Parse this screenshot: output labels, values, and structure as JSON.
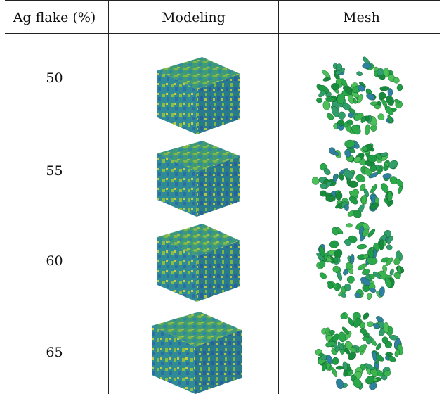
{
  "table": {
    "headers": {
      "col1": "Ag flake (%)",
      "col2": "Modeling",
      "col3": "Mesh"
    },
    "rows": [
      {
        "value": "50",
        "modeling_icon": "composite-cube-icon",
        "mesh_icon": "flake-mesh-icon"
      },
      {
        "value": "55",
        "modeling_icon": "composite-cube-icon",
        "mesh_icon": "flake-mesh-icon"
      },
      {
        "value": "60",
        "modeling_icon": "composite-cube-icon",
        "mesh_icon": "flake-mesh-icon"
      },
      {
        "value": "65",
        "modeling_icon": "composite-cube-icon",
        "mesh_icon": "flake-mesh-icon"
      }
    ],
    "colors": {
      "cube_top": "#3f9a78",
      "cube_left": "#2f8c96",
      "cube_right": "#2a7a8e",
      "flake_green": "#2aa84a",
      "flake_blue": "#2f7fa0"
    }
  }
}
